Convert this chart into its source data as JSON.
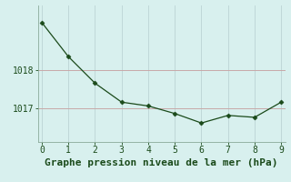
{
  "x": [
    0,
    1,
    2,
    3,
    4,
    5,
    6,
    7,
    8,
    9
  ],
  "y": [
    1019.25,
    1018.35,
    1017.65,
    1017.15,
    1017.05,
    1016.85,
    1016.6,
    1016.8,
    1016.75,
    1017.15
  ],
  "line_color": "#1a4a1a",
  "marker": "D",
  "marker_size": 2.5,
  "bg_color": "#d8f0ee",
  "grid_color_h": "#c8a8a8",
  "grid_color_v": "#c0d8d8",
  "xlabel": "Graphe pression niveau de la mer (hPa)",
  "xlabel_color": "#1a4a1a",
  "xlabel_fontsize": 8,
  "tick_color": "#1a4a1a",
  "tick_fontsize": 7,
  "yticks": [
    1017,
    1018
  ],
  "ylim": [
    1016.1,
    1019.7
  ],
  "xlim": [
    -0.15,
    9.15
  ],
  "xticks": [
    0,
    1,
    2,
    3,
    4,
    5,
    6,
    7,
    8,
    9
  ],
  "spine_color": "#8aaa9a"
}
